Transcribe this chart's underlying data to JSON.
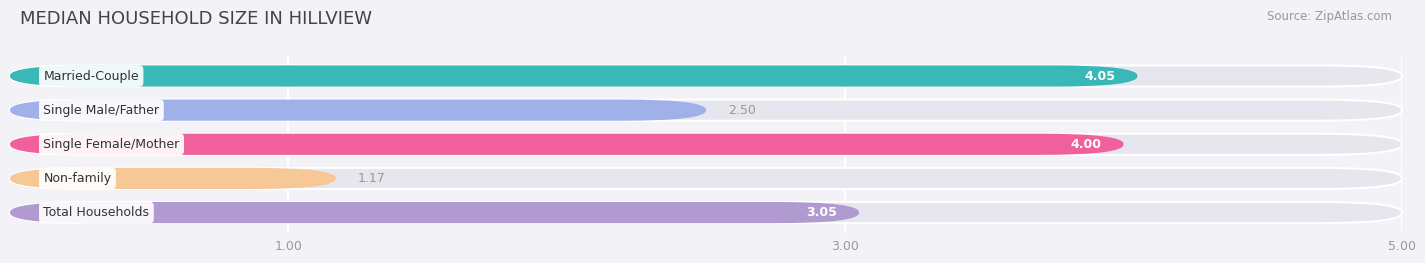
{
  "title": "MEDIAN HOUSEHOLD SIZE IN HILLVIEW",
  "source": "Source: ZipAtlas.com",
  "categories": [
    "Married-Couple",
    "Single Male/Father",
    "Single Female/Mother",
    "Non-family",
    "Total Households"
  ],
  "values": [
    4.05,
    2.5,
    4.0,
    1.17,
    3.05
  ],
  "bar_colors": [
    "#3ab8b8",
    "#a0b0e8",
    "#f0609a",
    "#f5c896",
    "#b09ad0"
  ],
  "xlim": [
    0,
    5.0
  ],
  "xticks": [
    1.0,
    3.0,
    5.0
  ],
  "xtick_labels": [
    "1.00",
    "3.00",
    "5.00"
  ],
  "bar_height": 0.62,
  "background_color": "#f2f2f7",
  "bar_bg_color": "#e6e6ee",
  "value_label_inside_color": "#ffffff",
  "value_label_outside_color": "#999999",
  "title_fontsize": 13,
  "label_fontsize": 9,
  "value_fontsize": 9,
  "source_fontsize": 8.5
}
